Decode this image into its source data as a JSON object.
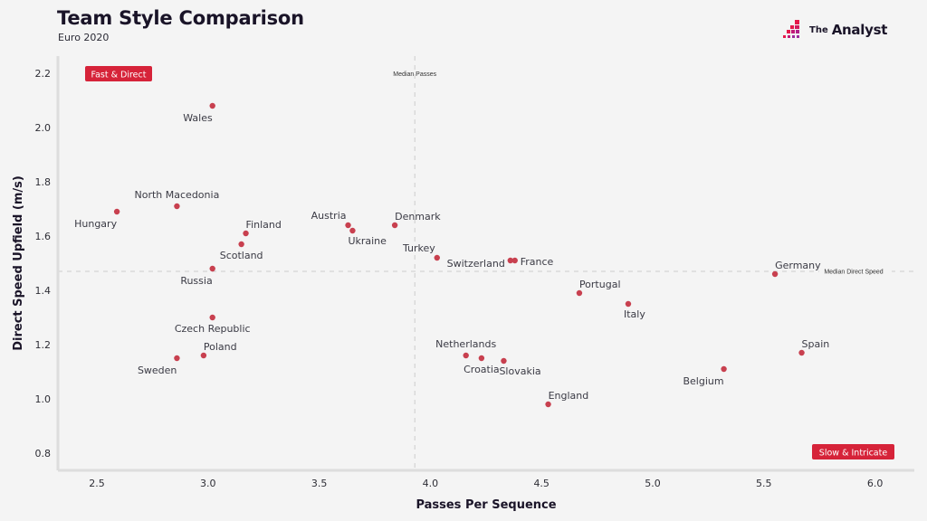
{
  "header": {
    "title": "Team Style Comparison",
    "subtitle": "Euro 2020"
  },
  "logo": {
    "icon": "analyst-pixel-logo-icon",
    "text_small": "The",
    "text_large": "Analyst",
    "colors": [
      "#e5194a",
      "#c21a78",
      "#9b2a9c"
    ]
  },
  "colors": {
    "point": "#c8404f",
    "badge": "#d62339",
    "background": "#f4f4f4",
    "median_line": "#cccccc",
    "axis_line": "#dddddd"
  },
  "chart_data": {
    "type": "scatter",
    "title": "Team Style Comparison",
    "subtitle": "Euro 2020",
    "xlabel": "Passes Per Sequence",
    "ylabel": "Direct Speed Upfield (m/s)",
    "xlim": [
      2.35,
      6.15
    ],
    "ylim": [
      0.73,
      2.27
    ],
    "xticks": [
      2.5,
      3.0,
      3.5,
      4.0,
      4.5,
      5.0,
      5.5,
      6.0
    ],
    "xtick_labels": [
      "2.5",
      "3.0",
      "3.5",
      "4.0",
      "4.5",
      "5.0",
      "5.5",
      "6.0"
    ],
    "yticks": [
      0.8,
      1.0,
      1.2,
      1.4,
      1.6,
      1.8,
      2.0,
      2.2
    ],
    "ytick_labels": [
      "0.8",
      "1.0",
      "1.2",
      "1.4",
      "1.6",
      "1.8",
      "2.0",
      "2.2"
    ],
    "grid": false,
    "reference_lines": [
      {
        "orientation": "vertical",
        "value": 3.93,
        "label": "Median Passes"
      },
      {
        "orientation": "horizontal",
        "value": 1.47,
        "label": "Median Direct Speed"
      }
    ],
    "quadrant_labels": [
      {
        "text": "Fast & Direct",
        "position": "top-left"
      },
      {
        "text": "Slow & Intricate",
        "position": "bottom-right"
      }
    ],
    "points": [
      {
        "team": "Wales",
        "x": 3.02,
        "y": 2.08,
        "label_pos": "below-left"
      },
      {
        "team": "North Macedonia",
        "x": 2.86,
        "y": 1.71,
        "label_pos": "above"
      },
      {
        "team": "Hungary",
        "x": 2.59,
        "y": 1.69,
        "label_pos": "below-left"
      },
      {
        "team": "Finland",
        "x": 3.17,
        "y": 1.61,
        "label_pos": "above-right"
      },
      {
        "team": "Scotland",
        "x": 3.15,
        "y": 1.57,
        "label_pos": "below"
      },
      {
        "team": "Russia",
        "x": 3.02,
        "y": 1.48,
        "label_pos": "below-left"
      },
      {
        "team": "Czech Republic",
        "x": 3.02,
        "y": 1.3,
        "label_pos": "below"
      },
      {
        "team": "Poland",
        "x": 2.98,
        "y": 1.16,
        "label_pos": "above-right"
      },
      {
        "team": "Sweden",
        "x": 2.86,
        "y": 1.15,
        "label_pos": "below-left"
      },
      {
        "team": "Austria",
        "x": 3.63,
        "y": 1.64,
        "label_pos": "above-left"
      },
      {
        "team": "Ukraine",
        "x": 3.65,
        "y": 1.62,
        "label_pos": "below-right"
      },
      {
        "team": "Denmark",
        "x": 3.84,
        "y": 1.64,
        "label_pos": "above-right"
      },
      {
        "team": "Turkey",
        "x": 4.03,
        "y": 1.52,
        "label_pos": "above-left"
      },
      {
        "team": "Switzerland",
        "x": 4.36,
        "y": 1.51,
        "label_pos": "left"
      },
      {
        "team": "France",
        "x": 4.38,
        "y": 1.51,
        "label_pos": "right"
      },
      {
        "team": "Germany",
        "x": 5.55,
        "y": 1.46,
        "label_pos": "above-right"
      },
      {
        "team": "Portugal",
        "x": 4.67,
        "y": 1.39,
        "label_pos": "above-right"
      },
      {
        "team": "Italy",
        "x": 4.89,
        "y": 1.35,
        "label_pos": "below-right"
      },
      {
        "team": "Spain",
        "x": 5.67,
        "y": 1.17,
        "label_pos": "above-right"
      },
      {
        "team": "Belgium",
        "x": 5.32,
        "y": 1.11,
        "label_pos": "below-left"
      },
      {
        "team": "Netherlands",
        "x": 4.16,
        "y": 1.16,
        "label_pos": "above"
      },
      {
        "team": "Croatia",
        "x": 4.23,
        "y": 1.15,
        "label_pos": "below"
      },
      {
        "team": "Slovakia",
        "x": 4.33,
        "y": 1.14,
        "label_pos": "below-right"
      },
      {
        "team": "England",
        "x": 4.53,
        "y": 0.98,
        "label_pos": "above-right"
      }
    ]
  }
}
